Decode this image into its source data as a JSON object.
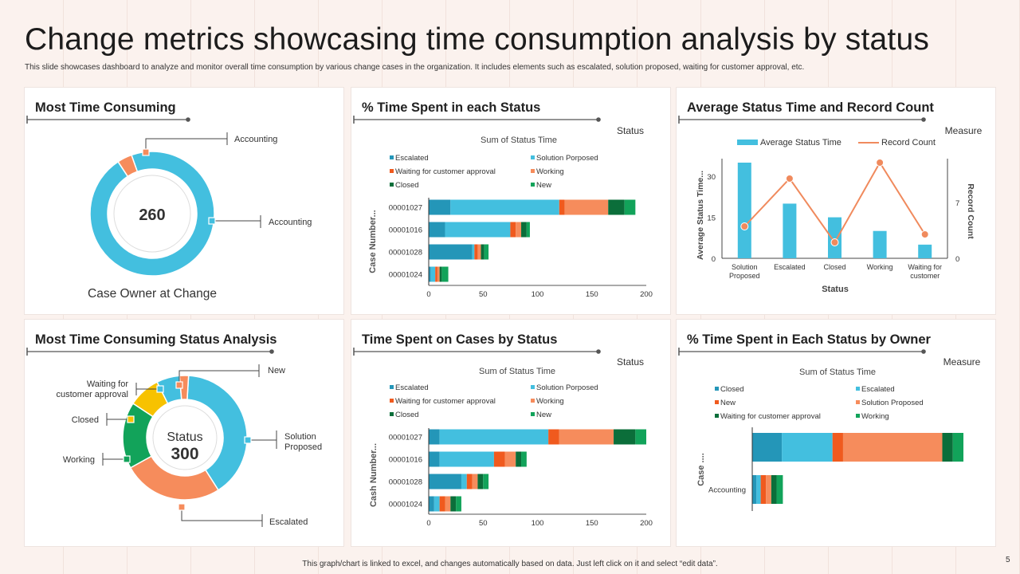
{
  "title": "Change metrics showcasing time consumption analysis by status",
  "subtitle": "This slide showcases dashboard to analyze and monitor overall time consumption by various change cases in the organization. It includes elements such as escalated, solution proposed, waiting for customer approval, etc.",
  "footer": "This graph/chart is linked to excel, and changes automatically based on data. Just left click on it and select “edit data”.",
  "page_number": "5",
  "colors": {
    "escalated": "#2496b8",
    "solution": "#43bfdf",
    "waiting": "#f05a1e",
    "working": "#f68c5c",
    "closed": "#0b6e3a",
    "new": "#12a35a",
    "yellow": "#f7c200",
    "line": "#f08a5d"
  },
  "panels": {
    "p1": {
      "title": "Most Time Consuming",
      "center_value": "260",
      "caption": "Case Owner at Change"
    },
    "p2": {
      "title": "% Time Spent in each Status",
      "corner": "Status"
    },
    "p3": {
      "title": "Average Status Time and Record Count",
      "corner": "Measure"
    },
    "p4": {
      "title": "Most Time Consuming Status  Analysis",
      "center_label": "Status",
      "center_value": "300"
    },
    "p5": {
      "title": "Time Spent on Cases  by Status",
      "corner": "Status"
    },
    "p6": {
      "title": "% Time Spent in Each Status by Owner",
      "corner": "Measure"
    }
  },
  "chart_data": [
    {
      "id": "p1",
      "type": "pie",
      "variant": "donut",
      "labels": [
        "Accounting",
        "Accounting"
      ],
      "values": [
        250,
        10
      ],
      "colors": [
        "#43bfdf",
        "#f68c5c"
      ]
    },
    {
      "id": "p2",
      "type": "bar",
      "orientation": "horizontal",
      "stacked": true,
      "title": "Sum of Status Time",
      "ylabel": "Case Number...",
      "xlim": [
        0,
        200
      ],
      "xticks": [
        "0",
        "50",
        "100",
        "150",
        "200"
      ],
      "legend": "top",
      "categories": [
        "00001027",
        "00001016",
        "00001028",
        "00001024"
      ],
      "series": [
        {
          "name": "Escalated",
          "values": [
            20,
            15,
            40,
            2
          ]
        },
        {
          "name": "Solution Porposed",
          "values": [
            100,
            60,
            2,
            4
          ]
        },
        {
          "name": "Waiting for customer approval",
          "values": [
            5,
            5,
            3,
            2
          ]
        },
        {
          "name": "Working",
          "values": [
            40,
            5,
            3,
            2
          ]
        },
        {
          "name": "Closed",
          "values": [
            15,
            5,
            3,
            2
          ]
        },
        {
          "name": "New",
          "values": [
            10,
            3,
            4,
            6
          ]
        }
      ]
    },
    {
      "id": "p3",
      "type": "bar",
      "combo": "bar+line",
      "xlabel": "Status",
      "ylabel": "Average Status Time...",
      "y2label": "Record Count",
      "ylim": [
        0,
        35
      ],
      "yticks": [
        "0",
        "15",
        "30"
      ],
      "y2lim": [
        0,
        12
      ],
      "y2ticks": [
        "0",
        "7"
      ],
      "legend": "top",
      "categories": [
        "Solution Proposed",
        "Escalated",
        "Closed",
        "Working",
        "Waiting for customer"
      ],
      "series": [
        {
          "name": "Average Status Time",
          "type": "bar",
          "values": [
            35,
            20,
            15,
            10,
            5
          ]
        },
        {
          "name": "Record Count",
          "type": "line",
          "axis": "right",
          "values": [
            4,
            10,
            2,
            12,
            3
          ]
        }
      ]
    },
    {
      "id": "p4",
      "type": "pie",
      "variant": "donut",
      "labels": [
        "Solution Proposed",
        "Escalated",
        "Working",
        "Closed",
        "Waiting  for customer approval",
        "New"
      ],
      "values": [
        120,
        78,
        52,
        25,
        18,
        7
      ],
      "colors": [
        "#43bfdf",
        "#f68c5c",
        "#12a35a",
        "#f7c200",
        "#43bfdf",
        "#f68c5c"
      ]
    },
    {
      "id": "p5",
      "type": "bar",
      "orientation": "horizontal",
      "stacked": true,
      "title": "Sum of Status Time",
      "ylabel": "Cash Number...",
      "xlim": [
        0,
        200
      ],
      "xticks": [
        "0",
        "50",
        "100",
        "150",
        "200"
      ],
      "legend": "top",
      "categories": [
        "00001027",
        "00001016",
        "00001028",
        "00001024"
      ],
      "series": [
        {
          "name": "Escalated",
          "values": [
            10,
            10,
            30,
            5
          ]
        },
        {
          "name": "Solution Porposed",
          "values": [
            100,
            50,
            5,
            5
          ]
        },
        {
          "name": "Waiting for customer approval",
          "values": [
            10,
            10,
            5,
            5
          ]
        },
        {
          "name": "Working",
          "values": [
            50,
            10,
            5,
            5
          ]
        },
        {
          "name": "Closed",
          "values": [
            20,
            5,
            5,
            5
          ]
        },
        {
          "name": "New",
          "values": [
            10,
            5,
            5,
            5
          ]
        }
      ]
    },
    {
      "id": "p6",
      "type": "bar",
      "orientation": "horizontal",
      "stacked": true,
      "title": "Sum of Status Time",
      "ylabel": "Case ....",
      "legend": "top",
      "categories": [
        "",
        "Accounting"
      ],
      "series": [
        {
          "name": "Closed",
          "values": [
            14,
            2
          ]
        },
        {
          "name": "Escalated",
          "values": [
            24,
            2
          ]
        },
        {
          "name": "New",
          "values": [
            5,
            2.5
          ]
        },
        {
          "name": "Solution Proposed",
          "values": [
            47,
            2.5
          ]
        },
        {
          "name": "Waiting for customer approval",
          "values": [
            5,
            2.5
          ]
        },
        {
          "name": "Working",
          "values": [
            5,
            3
          ]
        }
      ]
    }
  ]
}
